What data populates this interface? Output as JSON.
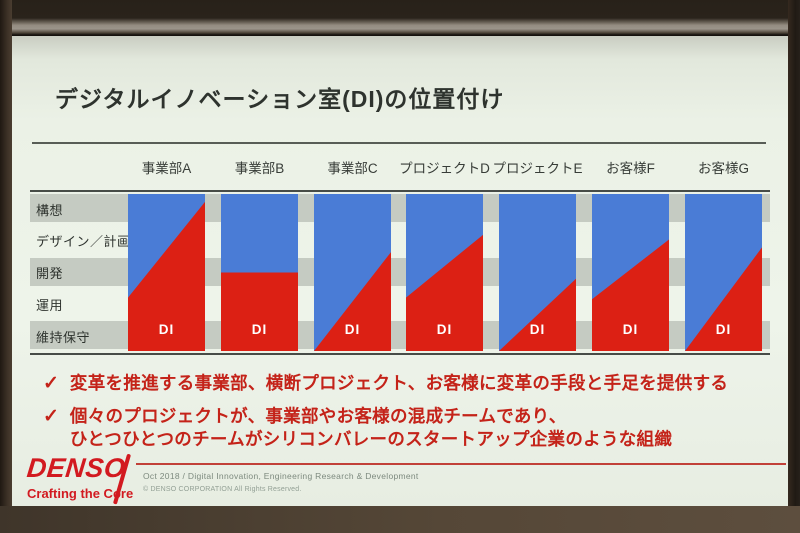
{
  "slide": {
    "title": "デジタルイノベーション室(DI)の位置付け",
    "matrix": {
      "row_labels": [
        "構想",
        "デザイン／計画",
        "開発",
        "運用",
        "維持保守"
      ],
      "di_label": "DI",
      "columns": [
        {
          "label": "事業部A",
          "red_region": "100% 5%, 100% 100%, 0% 100%, 0% 66%"
        },
        {
          "label": "事業部B",
          "red_region": "0% 50%, 100% 50%, 100% 100%, 0% 100%"
        },
        {
          "label": "事業部C",
          "red_region": "100% 37%, 100% 100%, 0% 100%"
        },
        {
          "label": "プロジェクトD",
          "red_region": "0% 66%, 100% 26%, 100% 100%, 0% 100%"
        },
        {
          "label": "プロジェクトE",
          "red_region": "0% 100%, 100% 54%, 100% 100%"
        },
        {
          "label": "お客様F",
          "red_region": "0% 67%, 100% 29%, 100% 100%, 0% 100%"
        },
        {
          "label": "お客様G",
          "red_region": "0% 100%, 100% 34%, 100% 100%"
        }
      ]
    },
    "bullets": [
      {
        "check": "✓",
        "text": "変革を推進する事業部、横断プロジェクト、お客様に変革の手段と手足を提供する"
      },
      {
        "check": "✓",
        "text": "個々のプロジェクトが、事業部やお客様の混成チームであり、\nひとつひとつのチームがシリコンバレーのスタートアップ企業のような組織"
      }
    ],
    "footer": {
      "logo": "DENSO",
      "tagline": "Crafting the Core",
      "info": "Oct 2018 / Digital Innovation, Engineering Research & Development",
      "copyright": "© DENSO CORPORATION All Rights Reserved."
    },
    "colors": {
      "di_blue": "#4a7cd6",
      "di_red": "#dc2014",
      "stripe_gray": "#c5cbc2",
      "bullet_red": "#c42319",
      "denso_red": "#d21a20"
    }
  }
}
